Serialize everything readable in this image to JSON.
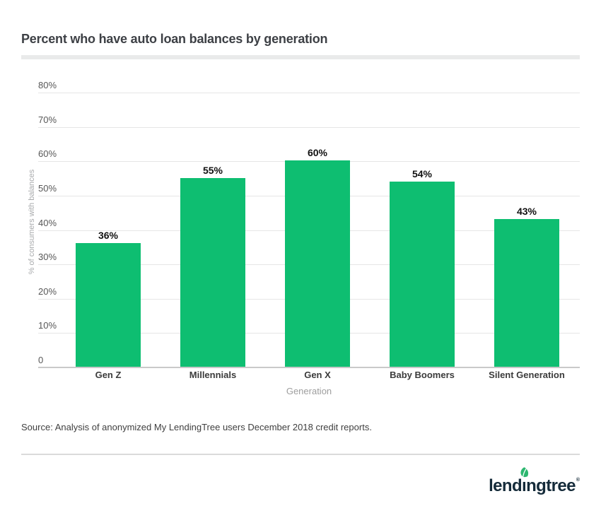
{
  "header": {
    "title": "Percent who have auto loan balances by generation"
  },
  "chart_data": {
    "type": "bar",
    "title": "Percent who have auto loan balances by generation",
    "categories": [
      "Gen Z",
      "Millennials",
      "Gen X",
      "Baby Boomers",
      "Silent Generation"
    ],
    "values": [
      36,
      55,
      60,
      54,
      43
    ],
    "value_labels": [
      "36%",
      "55%",
      "60%",
      "54%",
      "43%"
    ],
    "xlabel": "Generation",
    "ylabel": "% of consumers with balances",
    "ylim": [
      0,
      80
    ],
    "yticks": [
      80,
      70,
      60,
      50,
      40,
      30,
      20,
      10,
      0
    ],
    "ytick_labels": [
      "80%",
      "70%",
      "60%",
      "50%",
      "40%",
      "30%",
      "20%",
      "10%",
      "0"
    ],
    "grid": true,
    "legend": "none",
    "bar_color": "#0ebe71"
  },
  "source": {
    "text": "Source: Analysis of anonymized My LendingTree users December 2018 credit reports."
  },
  "footer": {
    "brand": {
      "wordmark": "lendingtree",
      "wordmark_pre": "lend",
      "wordmark_i": "ı",
      "wordmark_post": "ngtree",
      "registered": "®"
    }
  },
  "colors": {
    "bar": "#0ebe71",
    "leaf": "#2db770",
    "wordmark": "#152b3a",
    "gridline": "#e6e6e6",
    "baseline": "#c9c9c9",
    "divider": "#e9eaea"
  }
}
